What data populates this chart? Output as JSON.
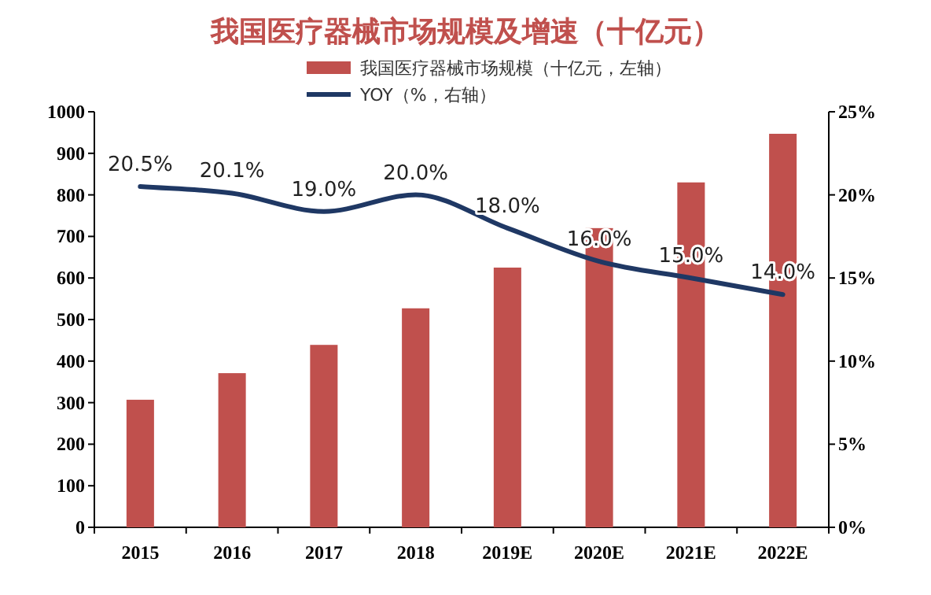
{
  "chart_data": {
    "type": "bar",
    "title": "我国医疗器械市场规模及增速（十亿元）",
    "categories": [
      "2015",
      "2016",
      "2017",
      "2018",
      "2019E",
      "2020E",
      "2021E",
      "2022E"
    ],
    "series": [
      {
        "name": "我国医疗器械市场规模（十亿元，左轴）",
        "color": "#c0504d",
        "values": [
          307,
          371,
          439,
          527,
          625,
          720,
          830,
          947
        ]
      },
      {
        "name": "YOY（%，右轴）",
        "type": "line",
        "axis": "y2",
        "color": "#1f3864",
        "values": [
          20.5,
          20.1,
          19.0,
          20.0,
          18.0,
          16.0,
          15.0,
          14.0
        ],
        "value_labels": [
          "20.5%",
          "20.1%",
          "19.0%",
          "20.0%",
          "18.0%",
          "16.0%",
          "15.0%",
          "14.0%"
        ]
      }
    ],
    "ylim": [
      0,
      1000
    ],
    "yticks": [
      0,
      100,
      200,
      300,
      400,
      500,
      600,
      700,
      800,
      900,
      1000
    ],
    "y2lim": [
      0,
      25
    ],
    "y2ticks": [
      {
        "value": 0,
        "label": "0%"
      },
      {
        "value": 5,
        "label": "5%"
      },
      {
        "value": 10,
        "label": "10%"
      },
      {
        "value": 15,
        "label": "15%"
      },
      {
        "value": 20,
        "label": "20%"
      },
      {
        "value": 25,
        "label": "25%"
      }
    ],
    "legend": "top",
    "grid": false
  }
}
